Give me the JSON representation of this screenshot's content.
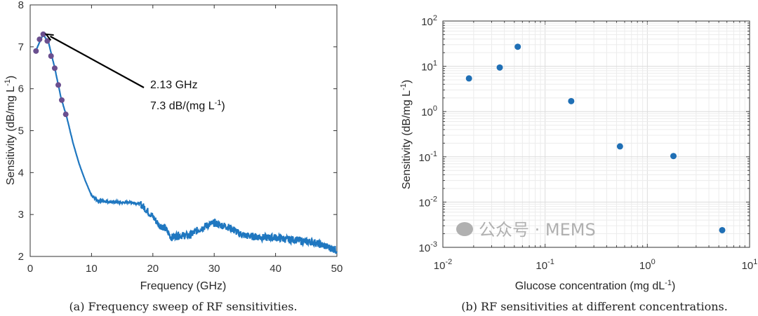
{
  "chart_data": [
    {
      "type": "line",
      "caption": "(a) Frequency sweep of RF sensitivities.",
      "xlabel": "Frequency (GHz)",
      "ylabel": "Sensitivity (dB/mg L",
      "ylabel_sup": "-1",
      "ylabel_end": ")",
      "xlim": [
        0,
        50
      ],
      "ylim": [
        2,
        8
      ],
      "xticks": [
        0,
        10,
        20,
        30,
        40,
        50
      ],
      "yticks": [
        2,
        3,
        4,
        5,
        6,
        7,
        8
      ],
      "grid": false,
      "line_color": "#1f77c0",
      "marker_color": "#6a4f8f",
      "curve": {
        "x": [
          0.9,
          2.1,
          3,
          4,
          5,
          6,
          7,
          8,
          9,
          10,
          11,
          12,
          13,
          14,
          15,
          16,
          17,
          18,
          19,
          20,
          21,
          22,
          23,
          24,
          25,
          26,
          27,
          28,
          29,
          30,
          31,
          32,
          33,
          34,
          35,
          36,
          37,
          38,
          39,
          40,
          41,
          42,
          43,
          44,
          45,
          46,
          47,
          48,
          49,
          50
        ],
        "y": [
          6.9,
          7.3,
          7.1,
          6.5,
          5.8,
          5.3,
          4.7,
          4.2,
          3.8,
          3.45,
          3.33,
          3.32,
          3.3,
          3.3,
          3.28,
          3.3,
          3.28,
          3.25,
          3.1,
          2.95,
          2.75,
          2.68,
          2.45,
          2.5,
          2.5,
          2.5,
          2.6,
          2.68,
          2.75,
          2.8,
          2.75,
          2.72,
          2.65,
          2.55,
          2.5,
          2.48,
          2.47,
          2.45,
          2.45,
          2.45,
          2.43,
          2.4,
          2.4,
          2.38,
          2.35,
          2.35,
          2.3,
          2.25,
          2.2,
          2.15
        ]
      },
      "markers": {
        "x": [
          0.95,
          1.53,
          2.13,
          2.79,
          3.4,
          4.0,
          4.58,
          5.15,
          5.8
        ],
        "y": [
          6.9,
          7.18,
          7.3,
          7.14,
          6.78,
          6.49,
          6.09,
          5.73,
          5.39
        ]
      },
      "annotation": {
        "line1": "2.13 GHz",
        "line2_pre": "7.3 dB/(mg L",
        "line2_sup": "-1",
        "line2_post": ")",
        "points_to": {
          "x": 2.13,
          "y": 7.3
        }
      }
    },
    {
      "type": "scatter",
      "caption": "(b) RF sensitivities at different concentrations.",
      "xlabel": "Glucose concentration (mg dL",
      "xlabel_sup": "-1",
      "xlabel_end": ")",
      "ylabel": "Sensitivity (dB/mg L",
      "ylabel_sup": "-1",
      "ylabel_end": ")",
      "xscale": "log",
      "yscale": "log",
      "xlim": [
        0.01,
        10
      ],
      "ylim": [
        0.001,
        100
      ],
      "xtick_exponents": [
        "-2",
        "-1",
        "0",
        "1"
      ],
      "ytick_exponents": [
        "-3",
        "-2",
        "-1",
        "0",
        "1",
        "2"
      ],
      "grid": true,
      "marker_color": "#1f6fb5",
      "x": [
        0.018,
        0.036,
        0.054,
        0.18,
        0.54,
        1.8,
        5.4
      ],
      "y": [
        5.4,
        9.4,
        27,
        1.7,
        0.17,
        0.104,
        0.0024
      ]
    }
  ],
  "watermark": {
    "text": "公众号 · MEMS"
  }
}
